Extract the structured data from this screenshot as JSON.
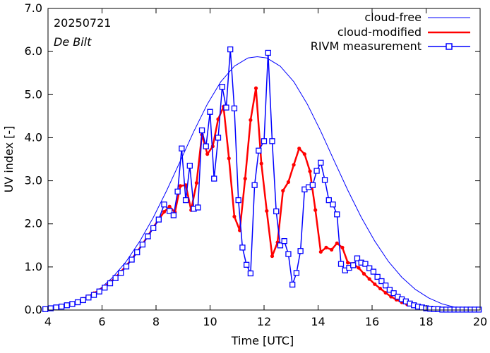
{
  "chart_data": {
    "type": "line",
    "title": "",
    "annotations": [
      "20250721",
      "De Bilt"
    ],
    "xlabel": "Time  [UTC]",
    "ylabel": "UV index  [-]",
    "xlim": [
      4,
      20
    ],
    "ylim": [
      0,
      7
    ],
    "xticks": [
      4,
      6,
      8,
      10,
      12,
      14,
      16,
      18,
      20
    ],
    "xtick_labels": [
      "4",
      "6",
      "8",
      "10",
      "12",
      "14",
      "16",
      "18",
      "20"
    ],
    "yticks": [
      0,
      1,
      2,
      3,
      4,
      5,
      6,
      7
    ],
    "ytick_labels": [
      "0.0",
      "1.0",
      "2.0",
      "3.0",
      "4.0",
      "5.0",
      "6.0",
      "7.0"
    ],
    "legend_position": "top-right",
    "series": [
      {
        "name": "cloud-free",
        "color": "#0000ff",
        "style": "line",
        "x": [
          3.9,
          4.4,
          4.9,
          5.4,
          5.9,
          6.4,
          6.9,
          7.4,
          7.9,
          8.4,
          8.9,
          9.4,
          9.9,
          10.4,
          10.9,
          11.4,
          11.75,
          12.1,
          12.6,
          13.1,
          13.6,
          14.1,
          14.6,
          15.1,
          15.6,
          16.1,
          16.6,
          17.1,
          17.6,
          18.1,
          18.6,
          19.1,
          19.6,
          20.0
        ],
        "values": [
          0.02,
          0.06,
          0.14,
          0.28,
          0.48,
          0.76,
          1.13,
          1.6,
          2.15,
          2.78,
          3.46,
          4.15,
          4.78,
          5.3,
          5.66,
          5.85,
          5.88,
          5.85,
          5.66,
          5.3,
          4.78,
          4.15,
          3.46,
          2.78,
          2.15,
          1.6,
          1.13,
          0.76,
          0.48,
          0.28,
          0.14,
          0.06,
          0.02,
          0.01
        ]
      },
      {
        "name": "cloud-modified",
        "color": "#ff0000",
        "style": "line-dot",
        "x": [
          3.9,
          4.1,
          4.3,
          4.5,
          4.7,
          4.9,
          5.1,
          5.3,
          5.5,
          5.7,
          5.9,
          6.1,
          6.3,
          6.5,
          6.7,
          6.9,
          7.1,
          7.3,
          7.5,
          7.7,
          7.9,
          8.1,
          8.3,
          8.5,
          8.7,
          8.9,
          9.1,
          9.3,
          9.5,
          9.7,
          9.9,
          10.1,
          10.3,
          10.5,
          10.7,
          10.9,
          11.1,
          11.3,
          11.5,
          11.7,
          11.9,
          12.1,
          12.3,
          12.5,
          12.7,
          12.9,
          13.1,
          13.3,
          13.5,
          13.7,
          13.9,
          14.1,
          14.3,
          14.5,
          14.7,
          14.9,
          15.1,
          15.3,
          15.5,
          15.7,
          15.9,
          16.1,
          16.3,
          16.5,
          16.7,
          16.9,
          17.1,
          17.3,
          17.5,
          17.7,
          17.9,
          18.1,
          18.3,
          18.5,
          18.7,
          18.9,
          19.1,
          19.3,
          19.5,
          19.7,
          19.9
        ],
        "values": [
          0.02,
          0.04,
          0.06,
          0.09,
          0.12,
          0.16,
          0.2,
          0.26,
          0.32,
          0.39,
          0.46,
          0.55,
          0.65,
          0.76,
          0.89,
          1.03,
          1.18,
          1.35,
          1.53,
          1.72,
          1.92,
          2.1,
          2.28,
          2.4,
          2.27,
          2.88,
          2.9,
          2.32,
          2.95,
          4.07,
          3.62,
          3.8,
          4.43,
          4.72,
          3.52,
          2.17,
          1.85,
          3.05,
          4.41,
          5.15,
          3.4,
          2.3,
          1.25,
          1.57,
          2.77,
          2.97,
          3.37,
          3.75,
          3.62,
          3.22,
          2.32,
          1.35,
          1.45,
          1.4,
          1.55,
          1.45,
          1.1,
          1.07,
          0.98,
          0.84,
          0.72,
          0.6,
          0.5,
          0.4,
          0.31,
          0.24,
          0.18,
          0.13,
          0.09,
          0.06,
          0.04,
          0.03,
          0.02,
          0.01,
          0.01,
          0.01,
          0.0,
          0.0,
          0.0,
          0.0,
          0.0
        ]
      },
      {
        "name": "RIVM measurement",
        "color": "#0000ff",
        "style": "line-square",
        "x": [
          3.9,
          4.1,
          4.3,
          4.5,
          4.7,
          4.9,
          5.1,
          5.3,
          5.5,
          5.7,
          5.9,
          6.1,
          6.3,
          6.5,
          6.7,
          6.9,
          7.1,
          7.3,
          7.5,
          7.7,
          7.9,
          8.1,
          8.3,
          8.5,
          8.65,
          8.8,
          8.95,
          9.1,
          9.25,
          9.4,
          9.55,
          9.7,
          9.85,
          10.0,
          10.15,
          10.3,
          10.45,
          10.6,
          10.75,
          10.9,
          11.05,
          11.2,
          11.35,
          11.5,
          11.65,
          11.8,
          12.0,
          12.15,
          12.3,
          12.45,
          12.6,
          12.75,
          12.9,
          13.05,
          13.2,
          13.35,
          13.5,
          13.65,
          13.8,
          13.95,
          14.1,
          14.25,
          14.4,
          14.55,
          14.7,
          14.85,
          15.0,
          15.15,
          15.3,
          15.45,
          15.6,
          15.75,
          15.9,
          16.05,
          16.2,
          16.35,
          16.5,
          16.65,
          16.8,
          16.95,
          17.1,
          17.25,
          17.4,
          17.55,
          17.7,
          17.85,
          18.0,
          18.15,
          18.3,
          18.45,
          18.6,
          18.75,
          18.9,
          19.05,
          19.2,
          19.35,
          19.5,
          19.65,
          19.8,
          19.95
        ],
        "values": [
          0.02,
          0.04,
          0.06,
          0.08,
          0.11,
          0.14,
          0.18,
          0.23,
          0.29,
          0.35,
          0.43,
          0.52,
          0.62,
          0.74,
          0.86,
          1.01,
          1.17,
          1.34,
          1.52,
          1.71,
          1.9,
          2.1,
          2.45,
          2.3,
          2.2,
          2.75,
          3.75,
          2.55,
          3.35,
          2.35,
          2.38,
          4.17,
          3.8,
          4.6,
          3.05,
          4.0,
          5.18,
          4.7,
          6.05,
          4.68,
          2.55,
          1.45,
          1.05,
          0.85,
          2.9,
          3.7,
          3.92,
          5.97,
          3.92,
          2.29,
          1.5,
          1.6,
          1.3,
          0.59,
          0.86,
          1.37,
          2.8,
          2.85,
          2.9,
          3.23,
          3.42,
          3.02,
          2.55,
          2.45,
          2.22,
          1.07,
          0.92,
          0.98,
          1.04,
          1.2,
          1.1,
          1.07,
          0.97,
          0.89,
          0.77,
          0.67,
          0.57,
          0.47,
          0.39,
          0.31,
          0.25,
          0.2,
          0.15,
          0.11,
          0.08,
          0.06,
          0.04,
          0.03,
          0.02,
          0.02,
          0.01,
          0.01,
          0.01,
          0.01,
          0.01,
          0.01,
          0.01,
          0.01,
          0.01,
          0.01
        ]
      }
    ]
  }
}
